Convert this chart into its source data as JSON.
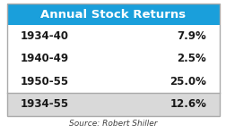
{
  "title": "Annual Stock Returns",
  "title_bg_color": "#1a9fdb",
  "title_text_color": "#ffffff",
  "rows": [
    {
      "period": "1934-40",
      "value": "7.9%",
      "bg": "#ffffff"
    },
    {
      "period": "1940-49",
      "value": "2.5%",
      "bg": "#ffffff"
    },
    {
      "period": "1950-55",
      "value": "25.0%",
      "bg": "#ffffff"
    },
    {
      "period": "1934-55",
      "value": "12.6%",
      "bg": "#d9d9d9"
    }
  ],
  "source_text": "Source: Robert Shiller",
  "source_color": "#404040",
  "border_color": "#aaaaaa",
  "text_color": "#1a1a1a",
  "figsize": [
    2.53,
    1.49
  ],
  "dpi": 100
}
